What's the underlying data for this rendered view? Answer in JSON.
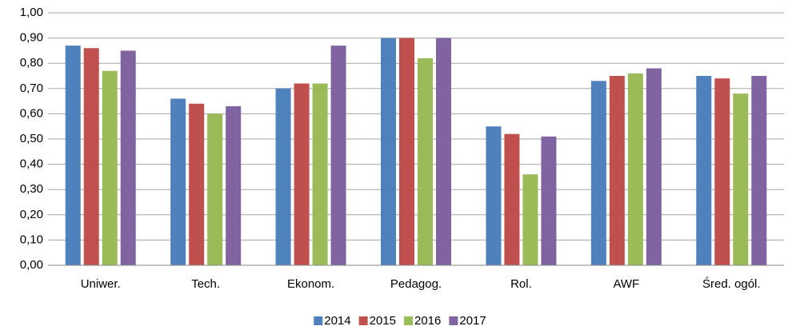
{
  "chart_data": {
    "type": "bar",
    "categories": [
      "Uniwer.",
      "Tech.",
      "Ekonom.",
      "Pedagog.",
      "Rol.",
      "AWF",
      "Śred. ogól."
    ],
    "series": [
      {
        "name": "2014",
        "color": "#4f81bd",
        "values": [
          0.87,
          0.66,
          0.7,
          0.9,
          0.55,
          0.73,
          0.75
        ]
      },
      {
        "name": "2015",
        "color": "#c0504d",
        "values": [
          0.86,
          0.64,
          0.72,
          0.9,
          0.52,
          0.75,
          0.74
        ]
      },
      {
        "name": "2016",
        "color": "#9bbb59",
        "values": [
          0.77,
          0.6,
          0.72,
          0.82,
          0.36,
          0.76,
          0.68
        ]
      },
      {
        "name": "2017",
        "color": "#8064a2",
        "values": [
          0.85,
          0.63,
          0.87,
          0.9,
          0.51,
          0.78,
          0.75
        ]
      }
    ],
    "ylim": [
      0,
      1
    ],
    "yticks": [
      {
        "value": 0,
        "label": "0,00"
      },
      {
        "value": 0.1,
        "label": "0,10"
      },
      {
        "value": 0.2,
        "label": "0,20"
      },
      {
        "value": 0.3,
        "label": "0,30"
      },
      {
        "value": 0.4,
        "label": "0,40"
      },
      {
        "value": 0.5,
        "label": "0,50"
      },
      {
        "value": 0.6,
        "label": "0,60"
      },
      {
        "value": 0.7,
        "label": "0,70"
      },
      {
        "value": 0.8,
        "label": "0,80"
      },
      {
        "value": 0.9,
        "label": "0,90"
      },
      {
        "value": 1,
        "label": "1,00"
      }
    ],
    "grid": true,
    "legend": "bottom"
  }
}
